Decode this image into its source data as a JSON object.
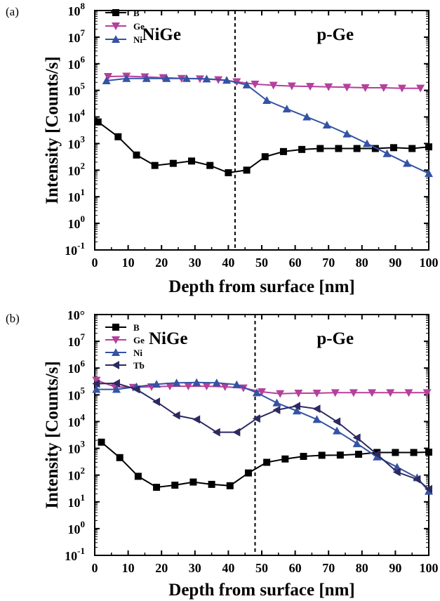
{
  "chart_data": [
    {
      "type": "line",
      "panel_label": "(a)",
      "xlabel": "Depth from surface [nm]",
      "ylabel": "Intensity [Counts/s]",
      "xlim": [
        0,
        100
      ],
      "ylim_exponent": [
        -1,
        8
      ],
      "y_scale": "log",
      "x_ticks": [
        "0",
        "10",
        "20",
        "30",
        "40",
        "50",
        "60",
        "70",
        "80",
        "90",
        "100"
      ],
      "y_tick_exponents": [
        "-1",
        "0",
        "1",
        "2",
        "3",
        "4",
        "5",
        "6",
        "7",
        "8"
      ],
      "y_tick_base": "10",
      "regions": [
        {
          "label": "NiGe",
          "x": 20
        },
        {
          "label": "p-Ge",
          "x": 72
        }
      ],
      "boundary_x": 42,
      "legend_placement": "top-left",
      "series": [
        {
          "name": "B",
          "color": "#000000",
          "marker": "square",
          "x": [
            1,
            7,
            12.5,
            18,
            23.5,
            29,
            34.5,
            40,
            45.5,
            51,
            56.5,
            62,
            67.5,
            73,
            78.5,
            84,
            89.5,
            95,
            100
          ],
          "y": [
            6500,
            1800,
            370,
            150,
            180,
            220,
            150,
            80,
            100,
            320,
            500,
            600,
            650,
            650,
            650,
            650,
            700,
            650,
            750
          ]
        },
        {
          "name": "Ge",
          "color": "#b5409c",
          "marker": "triangle-down",
          "x": [
            4,
            9.5,
            15,
            20.5,
            26,
            31.5,
            37,
            42.5,
            48,
            53.5,
            59,
            64.5,
            70,
            75.5,
            81,
            86.5,
            92,
            97.5
          ],
          "y": [
            330000,
            340000,
            320000,
            300000,
            280000,
            270000,
            250000,
            210000,
            170000,
            155000,
            145000,
            140000,
            135000,
            130000,
            125000,
            125000,
            120000,
            120000
          ]
        },
        {
          "name": "Ni",
          "color": "#3453a4",
          "marker": "triangle-up",
          "x": [
            3.5,
            9.5,
            15.5,
            21.5,
            27.5,
            33.5,
            39.5,
            45.5,
            51.5,
            57.5,
            63.5,
            69.5,
            75.5,
            81.5,
            87.5,
            93.5,
            100
          ],
          "y": [
            230000,
            280000,
            280000,
            280000,
            280000,
            270000,
            240000,
            160000,
            42000,
            20000,
            10000,
            5000,
            2300,
            1000,
            420,
            180,
            75
          ]
        }
      ]
    },
    {
      "type": "line",
      "panel_label": "(b)",
      "xlabel": "Depth from surface [nm]",
      "ylabel": "Intensity [Counts/s]",
      "xlim": [
        0,
        100
      ],
      "ylim_exponent": [
        -1,
        8
      ],
      "y_scale": "log",
      "x_ticks": [
        "0",
        "10",
        "20",
        "30",
        "40",
        "50",
        "60",
        "70",
        "80",
        "90",
        "100"
      ],
      "y_tick_exponents": [
        "-1",
        "0",
        "1",
        "2",
        "3",
        "4",
        "5",
        "6",
        "7",
        "8"
      ],
      "y_tick_base": "10",
      "top_tick_override": "10°",
      "regions": [
        {
          "label": "NiGe",
          "x": 22
        },
        {
          "label": "p-Ge",
          "x": 72
        }
      ],
      "boundary_x": 48,
      "legend_placement": "top-left",
      "series": [
        {
          "name": "B",
          "color": "#000000",
          "marker": "square",
          "x": [
            2,
            7.5,
            13,
            18.5,
            24,
            29.5,
            35,
            40.5,
            46,
            51.5,
            57,
            62.5,
            68,
            73.5,
            79,
            84.5,
            90,
            95.5,
            100
          ],
          "y": [
            1700,
            450,
            90,
            35,
            42,
            55,
            45,
            40,
            120,
            300,
            400,
            500,
            550,
            560,
            600,
            700,
            700,
            700,
            720
          ]
        },
        {
          "name": "Ge",
          "color": "#b5409c",
          "marker": "triangle-down",
          "x": [
            0.5,
            6,
            11.5,
            17,
            22.5,
            28,
            33.5,
            39,
            44.5,
            50,
            55.5,
            61,
            66.5,
            72,
            77.5,
            83,
            88.5,
            94,
            99.5
          ],
          "y": [
            350000,
            200000,
            190000,
            200000,
            210000,
            210000,
            210000,
            200000,
            180000,
            130000,
            110000,
            115000,
            115000,
            120000,
            120000,
            120000,
            120000,
            120000,
            120000
          ]
        },
        {
          "name": "Ni",
          "color": "#3453a4",
          "marker": "triangle-up",
          "x": [
            0.5,
            6.5,
            12.5,
            18.5,
            24.5,
            30.5,
            36.5,
            42.5,
            48.5,
            54.5,
            60.5,
            66.5,
            72.5,
            78.5,
            84.5,
            90.5,
            96.5,
            100
          ],
          "y": [
            160000,
            160000,
            200000,
            250000,
            280000,
            290000,
            280000,
            240000,
            120000,
            50000,
            25000,
            12000,
            4500,
            1500,
            480,
            200,
            80,
            25
          ]
        },
        {
          "name": "Tb",
          "color": "#2c2a60",
          "marker": "triangle-left",
          "x": [
            0.5,
            6.5,
            12.5,
            18.5,
            24.5,
            30.5,
            36.5,
            42.5,
            48.5,
            54.5,
            60.5,
            66.5,
            72.5,
            78.5,
            84.5,
            90.5,
            96.5,
            100
          ],
          "y": [
            260000,
            270000,
            160000,
            55000,
            17000,
            12000,
            4000,
            4000,
            13000,
            27000,
            38000,
            30000,
            10000,
            2500,
            600,
            130,
            70,
            30
          ]
        }
      ]
    }
  ]
}
